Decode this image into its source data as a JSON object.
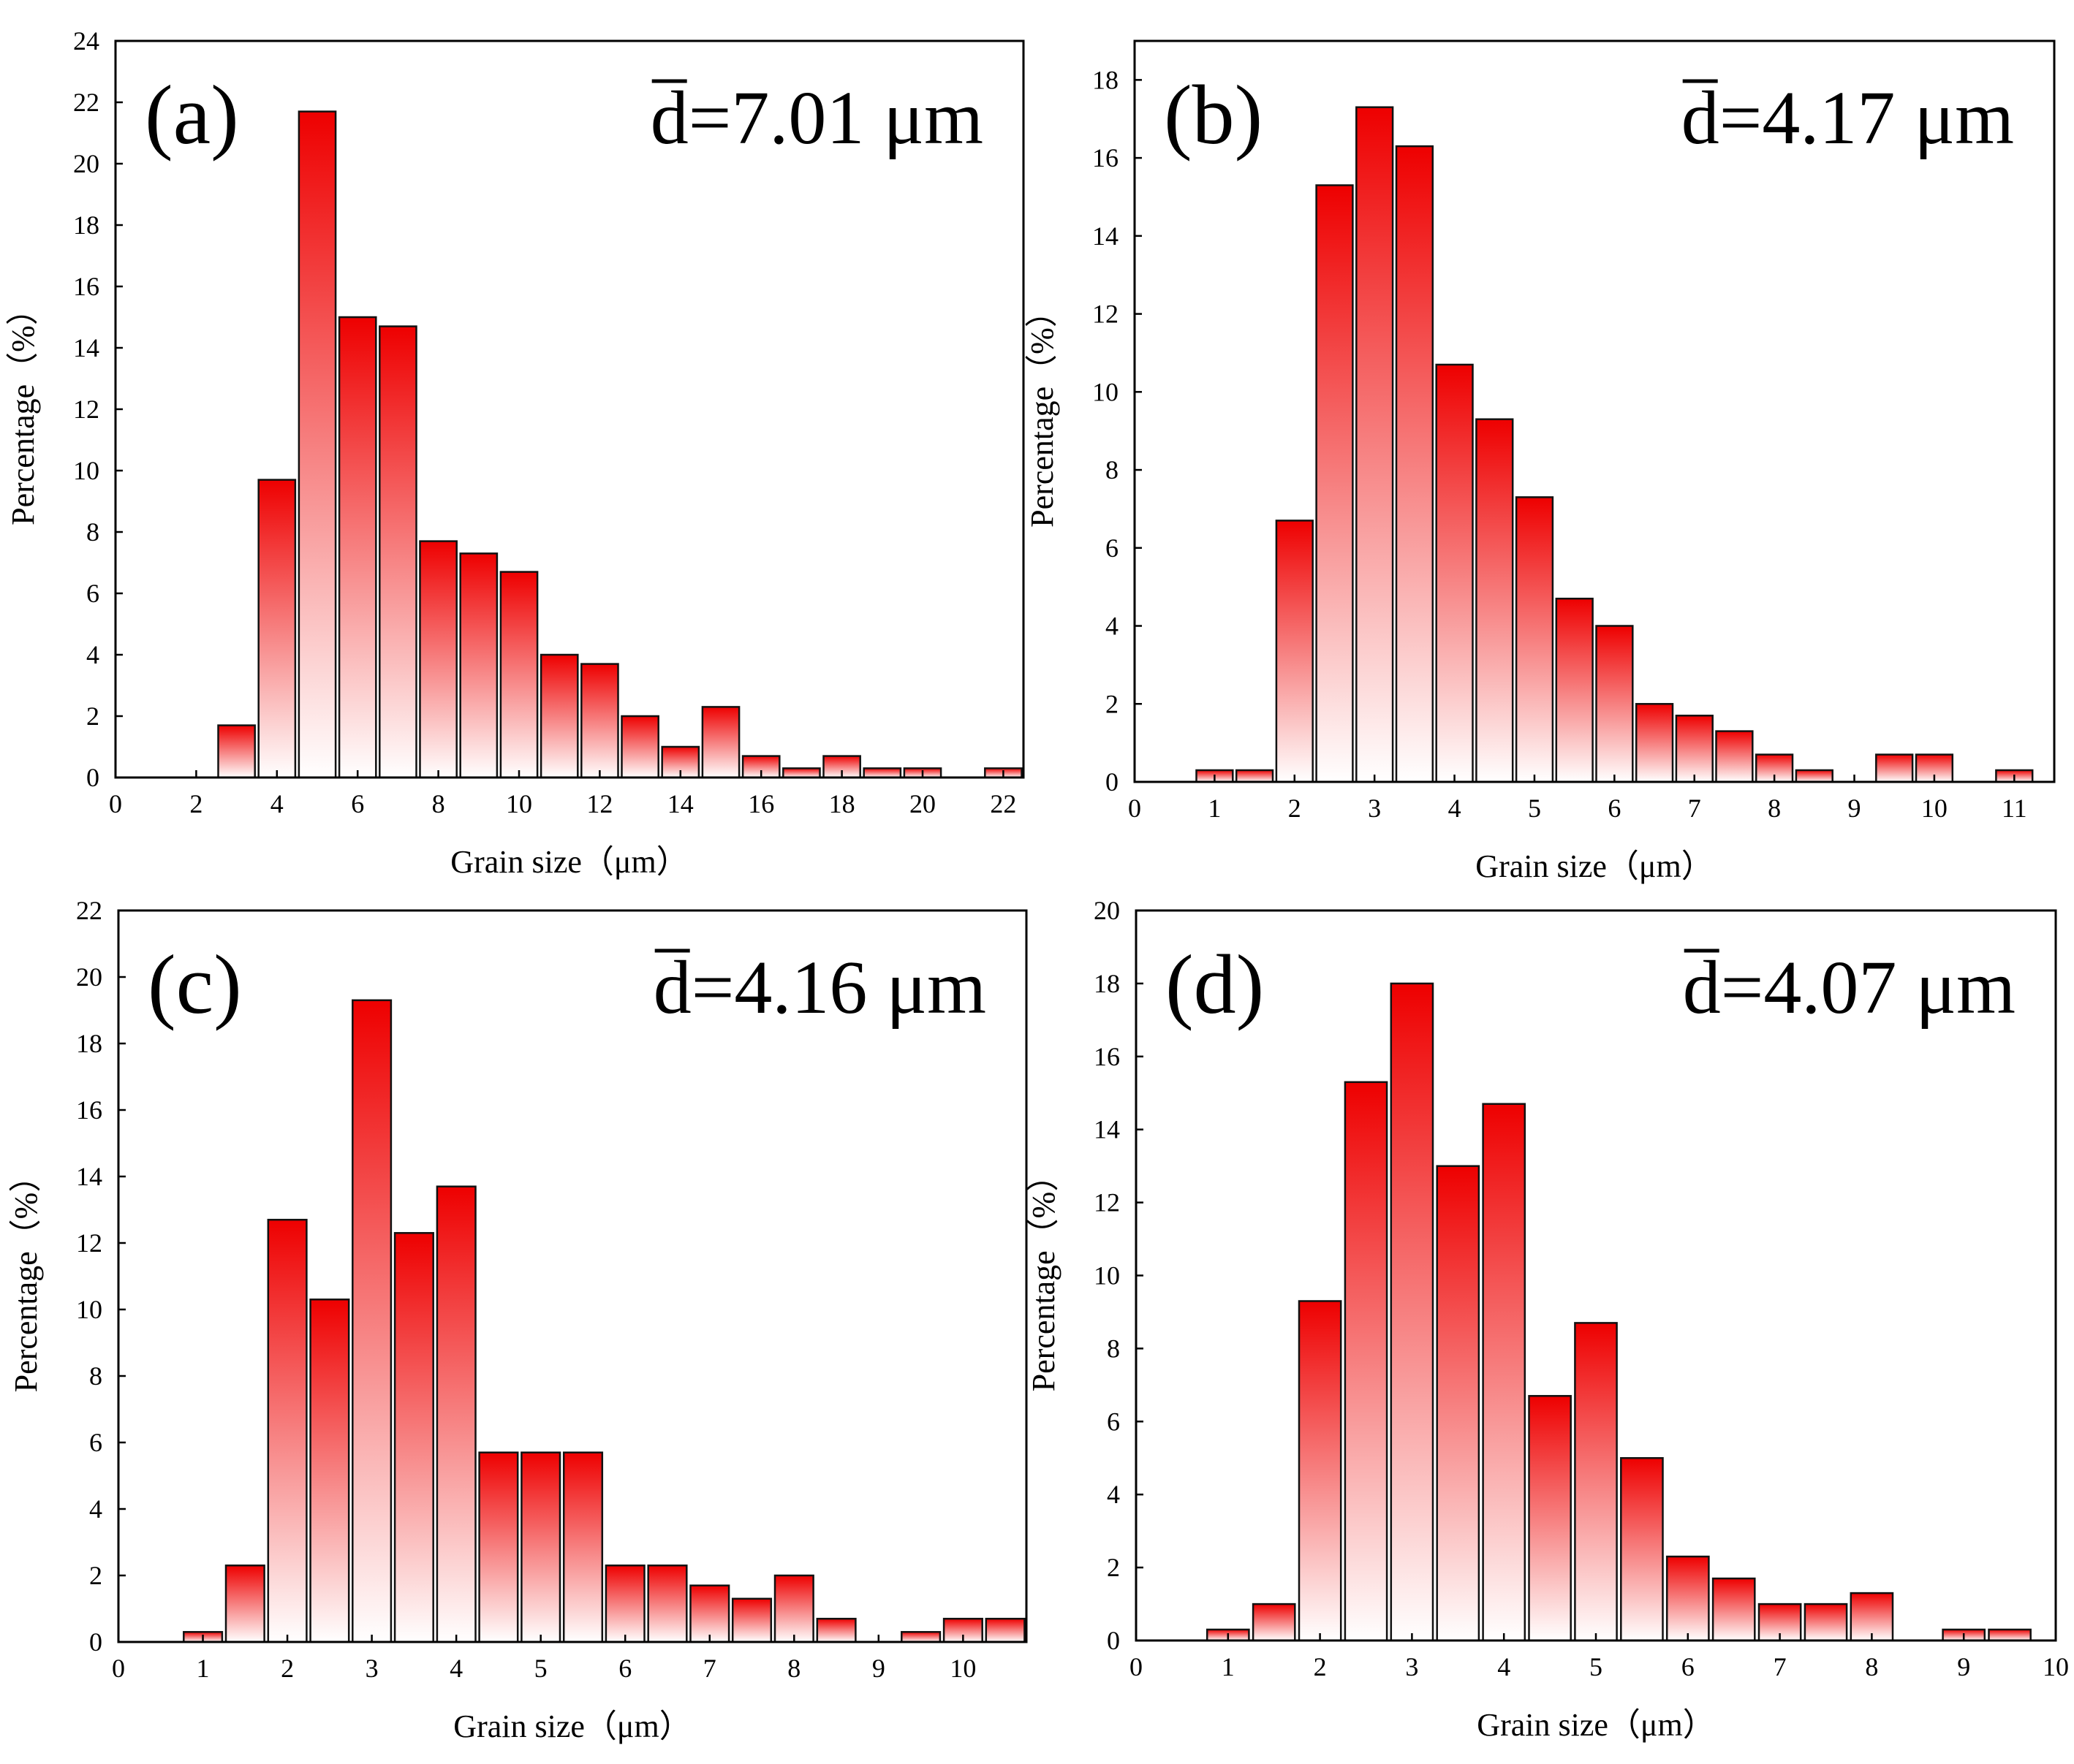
{
  "figure": {
    "panels_count": 4
  },
  "colors": {
    "bar_top": "#ee0000",
    "bar_bottom": "#ffffff",
    "bar_stroke": "#111111",
    "axis": "#000000"
  },
  "chart_data": [
    {
      "type": "bar",
      "panel_label": "(a)",
      "mean_label": "=7.01 μm",
      "mean_symbol": "d",
      "xlabel": "Grain size（μm）",
      "ylabel": "Percentage（%）",
      "xlim": [
        0,
        22.5
      ],
      "ylim": [
        0,
        24
      ],
      "xticks": [
        0,
        2,
        4,
        6,
        8,
        10,
        12,
        14,
        16,
        18,
        20,
        22
      ],
      "xtick_labels": [
        "0",
        "2",
        "4",
        "6",
        "8",
        "10",
        "12",
        "14",
        "16",
        "18",
        "20",
        "22"
      ],
      "yticks": [
        0,
        2,
        4,
        6,
        8,
        10,
        12,
        14,
        16,
        18,
        20,
        22,
        24
      ],
      "ytick_labels": [
        "0",
        "2",
        "4",
        "6",
        "8",
        "10",
        "12",
        "14",
        "16",
        "18",
        "20",
        "22",
        "24"
      ],
      "bin_width": 1,
      "bins": [
        3,
        4,
        5,
        6,
        7,
        8,
        9,
        10,
        11,
        12,
        13,
        14,
        15,
        16,
        17,
        18,
        19,
        20,
        22
      ],
      "values": [
        1.7,
        9.7,
        21.7,
        15.0,
        14.7,
        7.7,
        7.3,
        6.7,
        4.0,
        3.7,
        2.0,
        1.0,
        2.3,
        0.7,
        0.3,
        0.7,
        0.3,
        0.3,
        0.3
      ]
    },
    {
      "type": "bar",
      "panel_label": "(b)",
      "mean_label": "=4.17 μm",
      "mean_symbol": "d",
      "xlabel": "Grain size（μm）",
      "ylabel": "Percentage（%）",
      "xlim": [
        0,
        11.5
      ],
      "ylim": [
        0,
        19
      ],
      "xticks": [
        0,
        1,
        2,
        3,
        4,
        5,
        6,
        7,
        8,
        9,
        10,
        11
      ],
      "xtick_labels": [
        "0",
        "1",
        "2",
        "3",
        "4",
        "5",
        "6",
        "7",
        "8",
        "9",
        "10",
        "11"
      ],
      "yticks": [
        0,
        2,
        4,
        6,
        8,
        10,
        12,
        14,
        16,
        18
      ],
      "ytick_labels": [
        "0",
        "2",
        "4",
        "6",
        "8",
        "10",
        "12",
        "14",
        "16",
        "18"
      ],
      "bin_width": 0.5,
      "bins": [
        1.0,
        1.5,
        2.0,
        2.5,
        3.0,
        3.5,
        4.0,
        4.5,
        5.0,
        5.5,
        6.0,
        6.5,
        7.0,
        7.5,
        8.0,
        8.5,
        9.5,
        10.0,
        11.0
      ],
      "values": [
        0.3,
        0.3,
        6.7,
        15.3,
        17.3,
        16.3,
        10.7,
        9.3,
        7.3,
        4.7,
        4.0,
        2.0,
        1.7,
        1.3,
        0.7,
        0.3,
        0.7,
        0.7,
        0.3
      ]
    },
    {
      "type": "bar",
      "panel_label": "(c)",
      "mean_label": "=4.16 μm",
      "mean_symbol": "d",
      "xlabel": "Grain size（μm）",
      "ylabel": "Percentage（%）",
      "xlim": [
        0,
        10.75
      ],
      "ylim": [
        0,
        22
      ],
      "xticks": [
        0,
        1,
        2,
        3,
        4,
        5,
        6,
        7,
        8,
        9,
        10
      ],
      "xtick_labels": [
        "0",
        "1",
        "2",
        "3",
        "4",
        "5",
        "6",
        "7",
        "8",
        "9",
        "10"
      ],
      "yticks": [
        0,
        2,
        4,
        6,
        8,
        10,
        12,
        14,
        16,
        18,
        20,
        22
      ],
      "ytick_labels": [
        "0",
        "2",
        "4",
        "6",
        "8",
        "10",
        "12",
        "14",
        "16",
        "18",
        "20",
        "22"
      ],
      "bin_width": 0.5,
      "bins": [
        1.0,
        1.5,
        2.0,
        2.5,
        3.0,
        3.5,
        4.0,
        4.5,
        5.0,
        5.5,
        6.0,
        6.5,
        7.0,
        7.5,
        8.0,
        8.5,
        9.5,
        10.0,
        10.5
      ],
      "values": [
        0.3,
        2.3,
        12.7,
        10.3,
        19.3,
        12.3,
        13.7,
        5.7,
        5.7,
        5.7,
        2.3,
        2.3,
        1.7,
        1.3,
        2.0,
        0.7,
        0.3,
        0.7,
        0.7
      ]
    },
    {
      "type": "bar",
      "panel_label": "(d)",
      "mean_label": "=4.07 μm",
      "mean_symbol": "d",
      "xlabel": "Grain size（μm）",
      "ylabel": "Percentage（%）",
      "xlim": [
        0,
        10
      ],
      "ylim": [
        0,
        20
      ],
      "xticks": [
        0,
        1,
        2,
        3,
        4,
        5,
        6,
        7,
        8,
        9,
        10
      ],
      "xtick_labels": [
        "0",
        "1",
        "2",
        "3",
        "4",
        "5",
        "6",
        "7",
        "8",
        "9",
        "10"
      ],
      "yticks": [
        0,
        2,
        4,
        6,
        8,
        10,
        12,
        14,
        16,
        18,
        20
      ],
      "ytick_labels": [
        "0",
        "2",
        "4",
        "6",
        "8",
        "10",
        "12",
        "14",
        "16",
        "18",
        "20"
      ],
      "bin_width": 0.5,
      "bins": [
        1.0,
        1.5,
        2.0,
        2.5,
        3.0,
        3.5,
        4.0,
        4.5,
        5.0,
        5.5,
        6.0,
        6.5,
        7.0,
        7.5,
        8.0,
        9.0,
        9.5
      ],
      "values": [
        0.3,
        1.0,
        9.3,
        15.3,
        18.0,
        13.0,
        14.7,
        6.7,
        8.7,
        5.0,
        2.3,
        1.7,
        1.0,
        1.0,
        1.3,
        0.3,
        0.3
      ]
    }
  ]
}
